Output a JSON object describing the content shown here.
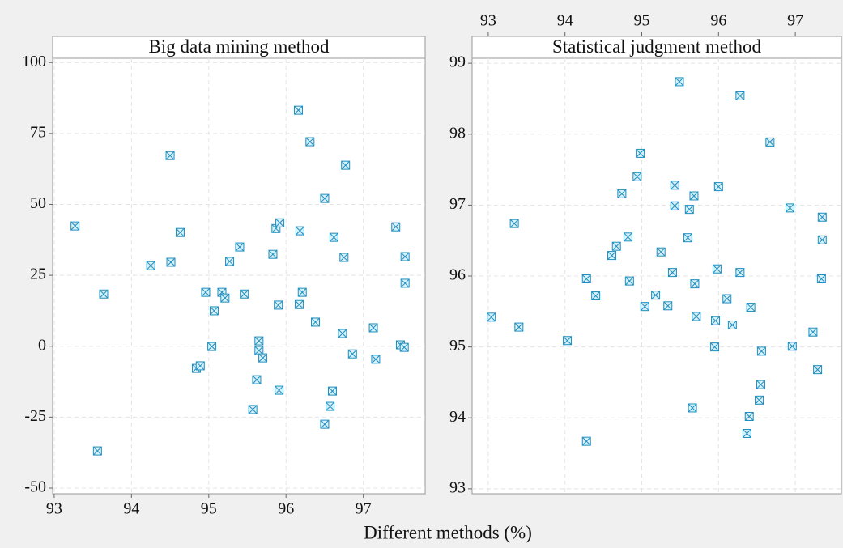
{
  "chart_data": [
    {
      "type": "scatter",
      "title": "Big data mining method",
      "xlabel": "Different methods (%)",
      "color": "#1f8fbf",
      "xaxis_position": "bottom",
      "grid": true,
      "xlim": [
        92.98,
        97.8
      ],
      "ylim": [
        -52,
        101.5
      ],
      "xticks": [
        93,
        94,
        95,
        96,
        97
      ],
      "yticks": [
        -50,
        -25,
        0,
        25,
        50,
        75,
        100
      ],
      "x": [
        93.27,
        93.56,
        93.64,
        94.25,
        94.5,
        94.51,
        94.63,
        94.84,
        94.89,
        94.96,
        95.04,
        95.07,
        95.17,
        95.21,
        95.27,
        95.4,
        95.46,
        95.57,
        95.62,
        95.65,
        95.65,
        95.7,
        95.83,
        95.87,
        95.91,
        95.9,
        95.92,
        96.16,
        96.17,
        96.18,
        96.21,
        96.31,
        96.38,
        96.5,
        96.5,
        96.57,
        96.6,
        96.62,
        96.73,
        96.75,
        96.77,
        96.86,
        97.13,
        97.16,
        97.42,
        97.48,
        97.53,
        97.54,
        97.54
      ],
      "y": [
        42.4,
        -36.9,
        18.4,
        28.4,
        67.2,
        29.6,
        40.1,
        -7.8,
        -6.9,
        19.0,
        -0.1,
        12.5,
        19.0,
        17.0,
        29.9,
        35.0,
        18.4,
        -22.3,
        -11.8,
        1.9,
        -1.5,
        -4.1,
        32.4,
        41.5,
        -15.5,
        14.5,
        43.5,
        83.2,
        14.7,
        40.7,
        19.0,
        72.1,
        8.5,
        52.1,
        -27.5,
        -21.2,
        -15.8,
        38.4,
        4.5,
        31.3,
        63.8,
        -2.7,
        6.5,
        -4.6,
        42.1,
        0.5,
        -0.4,
        31.6,
        22.2
      ]
    },
    {
      "type": "scatter",
      "title": "Statistical judgment method",
      "color": "#1f8fbf",
      "xaxis_position": "top",
      "grid": true,
      "xlim": [
        92.79,
        97.6
      ],
      "ylim": [
        92.93,
        99.07
      ],
      "xticks": [
        93,
        94,
        95,
        96,
        97
      ],
      "yticks": [
        93,
        94,
        95,
        96,
        97,
        98,
        99
      ],
      "x": [
        93.04,
        93.4,
        93.34,
        94.03,
        94.28,
        94.28,
        94.4,
        94.61,
        94.67,
        94.74,
        94.82,
        94.84,
        94.94,
        94.98,
        95.04,
        95.18,
        95.25,
        95.34,
        95.4,
        95.43,
        95.43,
        95.49,
        95.6,
        95.62,
        95.66,
        95.68,
        95.69,
        95.71,
        95.95,
        95.96,
        95.98,
        96.0,
        96.11,
        96.18,
        96.28,
        96.28,
        96.37,
        96.4,
        96.42,
        96.55,
        96.53,
        96.56,
        96.67,
        96.93,
        96.96,
        97.23,
        97.29,
        97.34,
        97.35,
        97.35
      ],
      "y": [
        95.42,
        95.28,
        96.74,
        95.09,
        93.67,
        95.96,
        95.72,
        96.29,
        96.42,
        97.16,
        96.55,
        95.93,
        97.4,
        97.73,
        95.57,
        95.73,
        96.34,
        95.58,
        96.05,
        97.28,
        96.99,
        98.74,
        96.54,
        96.94,
        94.14,
        97.13,
        95.89,
        95.43,
        95.0,
        95.37,
        96.1,
        97.26,
        95.68,
        95.31,
        98.54,
        96.05,
        93.78,
        94.02,
        95.56,
        94.47,
        94.25,
        94.94,
        97.89,
        96.96,
        95.01,
        95.21,
        94.68,
        95.96,
        96.83,
        96.51
      ]
    }
  ]
}
